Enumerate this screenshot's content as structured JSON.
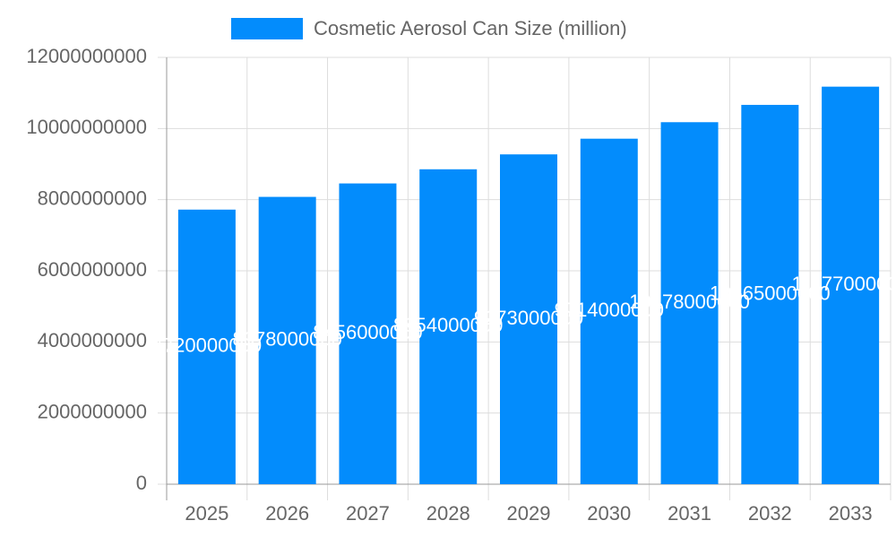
{
  "chart_data": {
    "type": "bar",
    "categories": [
      "2025",
      "2026",
      "2027",
      "2028",
      "2029",
      "2030",
      "2031",
      "2032",
      "2033"
    ],
    "series": [
      {
        "name": "Cosmetic Aerosol Can Size (million)",
        "color": "#038cfc",
        "values": [
          7720000000,
          8078000000,
          8456000000,
          8854000000,
          9273000000,
          9714000000,
          10178000000,
          10665000000,
          11177000000
        ]
      }
    ],
    "ylim": [
      0,
      12000000000
    ],
    "yticks": [
      0,
      2000000000,
      4000000000,
      6000000000,
      8000000000,
      10000000000,
      12000000000
    ],
    "grid": true,
    "legend": "top",
    "data_labels": true
  }
}
